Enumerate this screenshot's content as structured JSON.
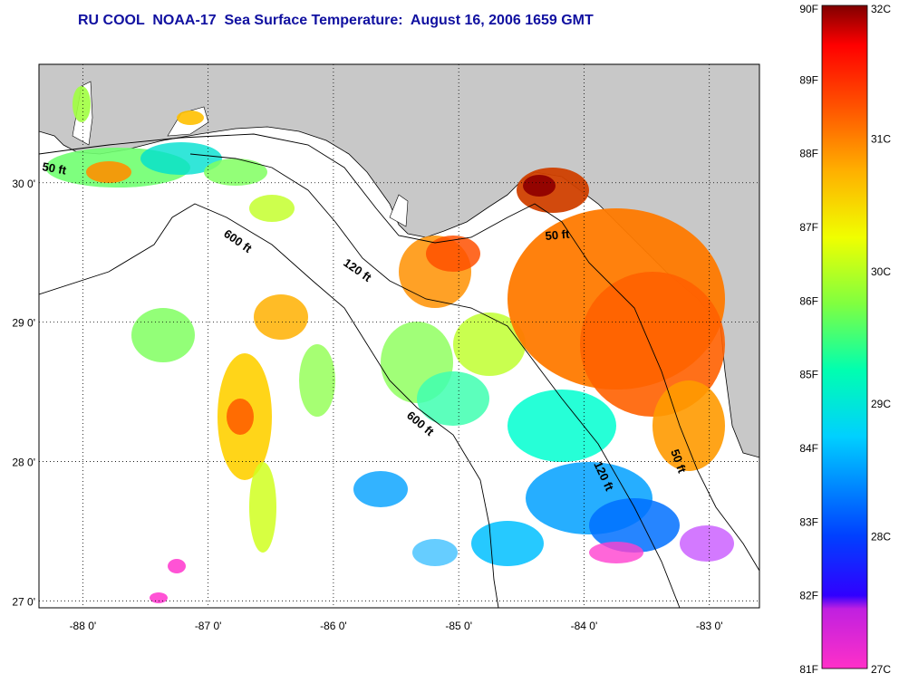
{
  "title": "RU COOL  NOAA-17  Sea Surface Temperature:  August 16, 2006 1659 GMT",
  "map": {
    "lon_range": [
      -88.35,
      -82.6
    ],
    "lat_range": [
      26.95,
      30.85
    ],
    "lon_ticks": [
      {
        "value": -88,
        "label": "-88 0'"
      },
      {
        "value": -87,
        "label": "-87 0'"
      },
      {
        "value": -86,
        "label": "-86 0'"
      },
      {
        "value": -85,
        "label": "-85 0'"
      },
      {
        "value": -84,
        "label": "-84 0'"
      },
      {
        "value": -83,
        "label": "-83 0'"
      }
    ],
    "lat_ticks": [
      {
        "value": 30,
        "label": "30 0'"
      },
      {
        "value": 29,
        "label": "29 0'"
      },
      {
        "value": 28,
        "label": "28 0'"
      },
      {
        "value": 27,
        "label": "27 0'"
      }
    ],
    "land_color": "#c8c8c8",
    "contour_labels": [
      {
        "text": "50 ft"
      },
      {
        "text": "600 ft"
      },
      {
        "text": "120 ft"
      },
      {
        "text": "50 ft"
      },
      {
        "text": "600 ft"
      },
      {
        "text": "120 ft"
      },
      {
        "text": "50 ft"
      }
    ]
  },
  "colorbar": {
    "f_labels": [
      "90F",
      "89F",
      "88F",
      "87F",
      "86F",
      "85F",
      "84F",
      "83F",
      "82F",
      "81F"
    ],
    "c_labels": [
      "32C",
      "31C",
      "30C",
      "29C",
      "28C",
      "27C"
    ],
    "colors": [
      "#ff30c8",
      "#8000e0",
      "#0000ff",
      "#0090ff",
      "#00ffff",
      "#60ff80",
      "#e0ff00",
      "#ffb000",
      "#ff4000",
      "#ff0000",
      "#800000"
    ]
  }
}
